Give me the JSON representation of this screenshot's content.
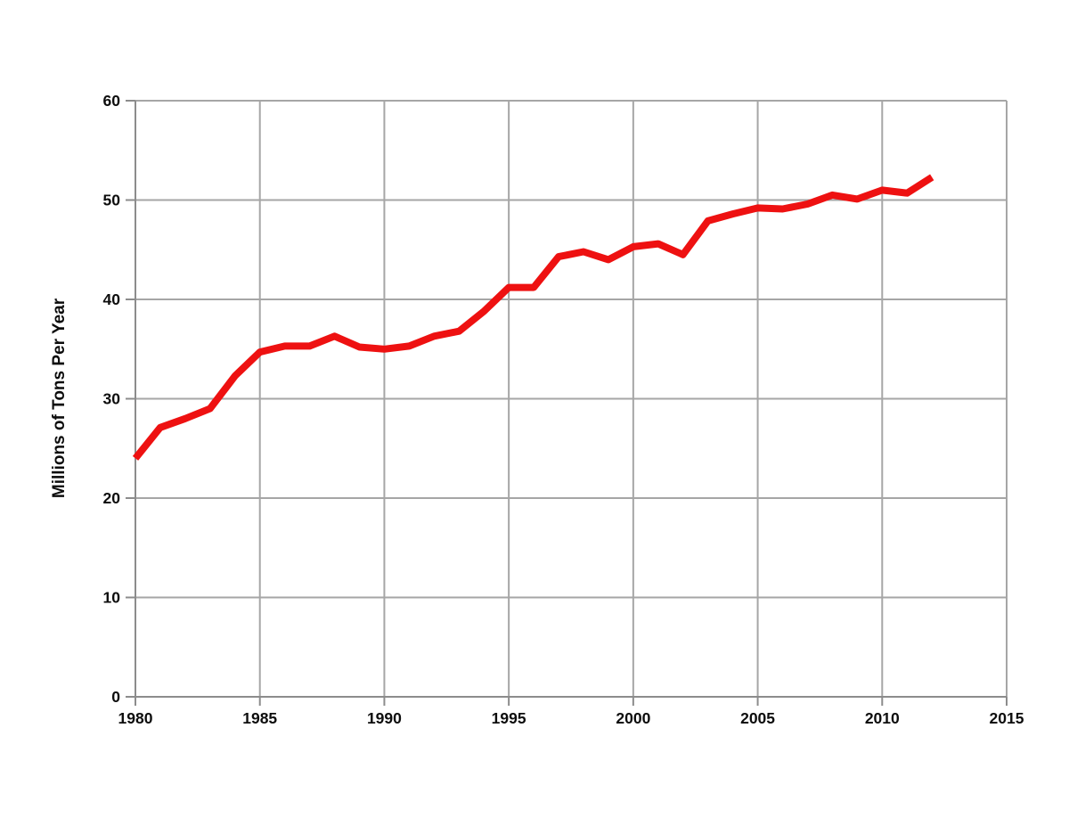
{
  "chart_data": {
    "type": "line",
    "title": "",
    "xlabel": "",
    "ylabel": "Millions of Tons Per Year",
    "xlim": [
      1980,
      2015
    ],
    "ylim": [
      0,
      60
    ],
    "x_ticks": [
      1980,
      1985,
      1990,
      1995,
      2000,
      2005,
      2010,
      2015
    ],
    "y_ticks": [
      0,
      10,
      20,
      30,
      40,
      50,
      60
    ],
    "grid": "both",
    "legend": "none",
    "series": [
      {
        "name": "Millions of Tons Per Year",
        "x": [
          1980,
          1981,
          1982,
          1983,
          1984,
          1985,
          1986,
          1987,
          1988,
          1989,
          1990,
          1991,
          1992,
          1993,
          1994,
          1995,
          1996,
          1997,
          1998,
          1999,
          2000,
          2001,
          2002,
          2003,
          2004,
          2005,
          2006,
          2007,
          2008,
          2009,
          2010,
          2011,
          2012
        ],
        "values": [
          24.0,
          27.1,
          28.0,
          29.0,
          32.3,
          34.7,
          35.3,
          35.3,
          36.3,
          35.2,
          35.0,
          35.3,
          36.3,
          36.8,
          38.8,
          41.2,
          41.2,
          44.3,
          44.8,
          44.0,
          45.3,
          45.6,
          44.5,
          47.9,
          48.6,
          49.2,
          49.1,
          49.6,
          50.5,
          50.1,
          51.0,
          50.7,
          52.3
        ]
      }
    ],
    "colors": {
      "line": "#ee1111",
      "grid": "#a6a6a6",
      "axis": "#8c8c8c",
      "label": "#0d0d0d",
      "background": "#ffffff"
    }
  }
}
